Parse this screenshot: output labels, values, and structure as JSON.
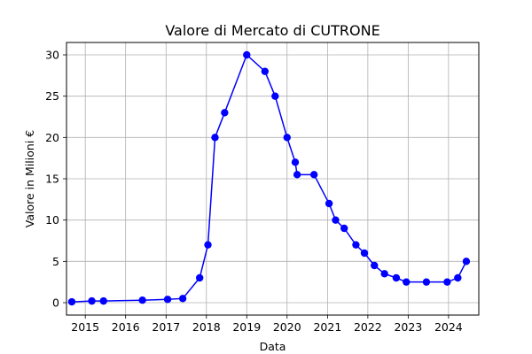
{
  "chart_data": {
    "type": "line",
    "title": "Valore di Mercato di CUTRONE",
    "xlabel": "Data",
    "ylabel": "Valore in Milioni €",
    "x_ticks": [
      "2015",
      "2016",
      "2017",
      "2018",
      "2019",
      "2020",
      "2021",
      "2022",
      "2023",
      "2024"
    ],
    "y_ticks": [
      "0",
      "5",
      "10",
      "15",
      "20",
      "25",
      "30"
    ],
    "xlim": [
      "2014-07-15",
      "2024-10-01"
    ],
    "ylim": [
      -1.5,
      31.5
    ],
    "grid": true,
    "series": [
      {
        "color": "#0000ff",
        "marker": "circle",
        "x": [
          "2014-09-01",
          "2015-03-01",
          "2015-06-15",
          "2016-06-01",
          "2017-01-15",
          "2017-06-01",
          "2017-11-01",
          "2018-01-15",
          "2018-03-20",
          "2018-06-15",
          "2019-01-01",
          "2019-06-15",
          "2019-09-15",
          "2020-01-01",
          "2020-03-15",
          "2020-04-01",
          "2020-09-01",
          "2021-01-15",
          "2021-03-15",
          "2021-06-01",
          "2021-09-15",
          "2021-12-01",
          "2022-03-01",
          "2022-06-01",
          "2022-09-15",
          "2022-12-15",
          "2023-06-15",
          "2023-12-20",
          "2024-03-25",
          "2024-06-10"
        ],
        "values": [
          0.1,
          0.2,
          0.2,
          0.3,
          0.4,
          0.5,
          3,
          7,
          20,
          23,
          30,
          28,
          25,
          20,
          17,
          15.5,
          15.5,
          12,
          10,
          9,
          7,
          6,
          4.5,
          3.5,
          3,
          2.5,
          2.5,
          2.5,
          3,
          5
        ]
      }
    ]
  }
}
